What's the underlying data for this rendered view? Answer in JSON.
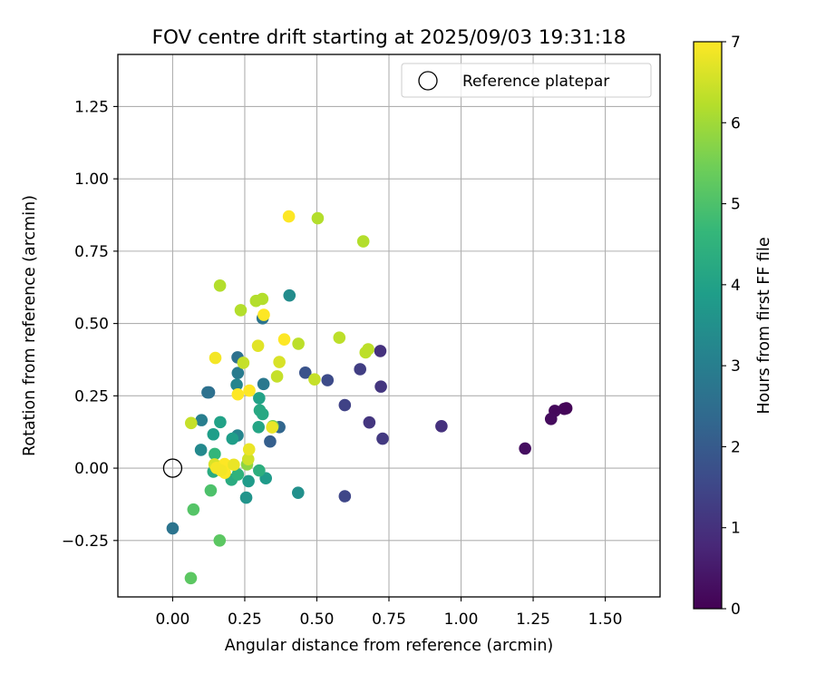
{
  "chart_data": {
    "type": "scatter",
    "title": "FOV centre drift starting at 2025/09/03 19:31:18",
    "xlabel": "Angular distance from reference (arcmin)",
    "ylabel": "Rotation from reference (arcmin)",
    "xlim": [
      -0.19,
      1.69
    ],
    "ylim": [
      -0.445,
      1.43
    ],
    "xticks": [
      0.0,
      0.25,
      0.5,
      0.75,
      1.0,
      1.25,
      1.5
    ],
    "xtick_labels": [
      "0.00",
      "0.25",
      "0.50",
      "0.75",
      "1.00",
      "1.25",
      "1.50"
    ],
    "yticks": [
      -0.25,
      0.0,
      0.25,
      0.5,
      0.75,
      1.0,
      1.25
    ],
    "ytick_labels": [
      "−0.25",
      "0.00",
      "0.25",
      "0.50",
      "0.75",
      "1.00",
      "1.25"
    ],
    "grid": true,
    "legend": {
      "position": "top-right",
      "label": "Reference platepar"
    },
    "reference_point": {
      "x": 0.0,
      "y": 0.0
    },
    "colorbar": {
      "label": "Hours from first FF file",
      "min": 0,
      "max": 7,
      "ticks": [
        0,
        1,
        2,
        3,
        4,
        5,
        6,
        7
      ],
      "tick_labels": [
        "0",
        "1",
        "2",
        "3",
        "4",
        "5",
        "6",
        "7"
      ],
      "colormap": "viridis",
      "stops": [
        "#440154",
        "#482878",
        "#3e4989",
        "#31688e",
        "#26828e",
        "#1f9e89",
        "#35b779",
        "#6ece58",
        "#b5de2b",
        "#fde725"
      ]
    },
    "points": [
      {
        "x": 1.365,
        "y": 0.207,
        "h": 0.05
      },
      {
        "x": 1.358,
        "y": 0.205,
        "h": 0.1
      },
      {
        "x": 1.325,
        "y": 0.198,
        "h": 0.15
      },
      {
        "x": 1.312,
        "y": 0.17,
        "h": 0.2
      },
      {
        "x": 1.222,
        "y": 0.068,
        "h": 0.25
      },
      {
        "x": 0.932,
        "y": 0.145,
        "h": 1.0
      },
      {
        "x": 0.72,
        "y": 0.405,
        "h": 1.0
      },
      {
        "x": 0.722,
        "y": 0.282,
        "h": 1.1
      },
      {
        "x": 0.728,
        "y": 0.102,
        "h": 1.2
      },
      {
        "x": 0.682,
        "y": 0.158,
        "h": 1.1
      },
      {
        "x": 0.65,
        "y": 0.342,
        "h": 1.3
      },
      {
        "x": 0.597,
        "y": 0.218,
        "h": 1.4
      },
      {
        "x": 0.597,
        "y": -0.097,
        "h": 1.5
      },
      {
        "x": 0.537,
        "y": 0.304,
        "h": 1.6
      },
      {
        "x": 0.46,
        "y": 0.33,
        "h": 1.8
      },
      {
        "x": 0.338,
        "y": 0.092,
        "h": 2.1
      },
      {
        "x": 0.37,
        "y": 0.142,
        "h": 2.3
      },
      {
        "x": 0.126,
        "y": 0.262,
        "h": 2.5
      },
      {
        "x": 0.121,
        "y": 0.262,
        "h": 2.6
      },
      {
        "x": 0.225,
        "y": 0.383,
        "h": 2.6
      },
      {
        "x": 0.312,
        "y": 0.518,
        "h": 2.7
      },
      {
        "x": 0.0,
        "y": -0.208,
        "h": 2.7
      },
      {
        "x": 0.315,
        "y": 0.291,
        "h": 2.8
      },
      {
        "x": 0.226,
        "y": 0.329,
        "h": 2.9
      },
      {
        "x": 0.1,
        "y": 0.166,
        "h": 3.0
      },
      {
        "x": 0.222,
        "y": 0.288,
        "h": 3.2
      },
      {
        "x": 0.225,
        "y": 0.113,
        "h": 3.2
      },
      {
        "x": 0.098,
        "y": 0.063,
        "h": 3.3
      },
      {
        "x": 0.405,
        "y": 0.597,
        "h": 3.4
      },
      {
        "x": 0.435,
        "y": -0.085,
        "h": 3.5
      },
      {
        "x": 0.255,
        "y": -0.102,
        "h": 3.6
      },
      {
        "x": 0.263,
        "y": -0.045,
        "h": 3.8
      },
      {
        "x": 0.323,
        "y": -0.035,
        "h": 3.8
      },
      {
        "x": 0.141,
        "y": 0.117,
        "h": 3.9
      },
      {
        "x": 0.207,
        "y": 0.102,
        "h": 3.9
      },
      {
        "x": 0.165,
        "y": 0.159,
        "h": 4.0
      },
      {
        "x": 0.3,
        "y": 0.242,
        "h": 4.0
      },
      {
        "x": 0.298,
        "y": 0.142,
        "h": 4.1
      },
      {
        "x": 0.302,
        "y": 0.2,
        "h": 4.2
      },
      {
        "x": 0.312,
        "y": 0.187,
        "h": 4.2
      },
      {
        "x": 0.141,
        "y": -0.012,
        "h": 4.3
      },
      {
        "x": 0.204,
        "y": -0.04,
        "h": 4.3
      },
      {
        "x": 0.3,
        "y": -0.008,
        "h": 4.4
      },
      {
        "x": 0.226,
        "y": -0.022,
        "h": 4.5
      },
      {
        "x": 0.146,
        "y": 0.049,
        "h": 4.6
      },
      {
        "x": 0.132,
        "y": -0.077,
        "h": 5.0
      },
      {
        "x": 0.072,
        "y": -0.143,
        "h": 5.1
      },
      {
        "x": 0.163,
        "y": -0.25,
        "h": 5.2
      },
      {
        "x": 0.063,
        "y": -0.38,
        "h": 5.2
      },
      {
        "x": 0.347,
        "y": 0.145,
        "h": 5.5
      },
      {
        "x": 0.258,
        "y": 0.013,
        "h": 5.8
      },
      {
        "x": 0.164,
        "y": 0.631,
        "h": 6.2
      },
      {
        "x": 0.236,
        "y": 0.546,
        "h": 6.2
      },
      {
        "x": 0.503,
        "y": 0.864,
        "h": 6.2
      },
      {
        "x": 0.661,
        "y": 0.784,
        "h": 6.2
      },
      {
        "x": 0.289,
        "y": 0.578,
        "h": 6.2
      },
      {
        "x": 0.311,
        "y": 0.585,
        "h": 6.2
      },
      {
        "x": 0.678,
        "y": 0.411,
        "h": 6.3
      },
      {
        "x": 0.669,
        "y": 0.4,
        "h": 6.3
      },
      {
        "x": 0.578,
        "y": 0.451,
        "h": 6.3
      },
      {
        "x": 0.436,
        "y": 0.43,
        "h": 6.3
      },
      {
        "x": 0.064,
        "y": 0.156,
        "h": 6.4
      },
      {
        "x": 0.245,
        "y": 0.364,
        "h": 6.4
      },
      {
        "x": 0.362,
        "y": 0.317,
        "h": 6.4
      },
      {
        "x": 0.492,
        "y": 0.307,
        "h": 6.4
      },
      {
        "x": 0.262,
        "y": 0.031,
        "h": 6.5
      },
      {
        "x": 0.145,
        "y": 0.013,
        "h": 6.6
      },
      {
        "x": 0.37,
        "y": 0.367,
        "h": 6.6
      },
      {
        "x": 0.296,
        "y": 0.423,
        "h": 6.7
      },
      {
        "x": 0.345,
        "y": 0.141,
        "h": 6.8
      },
      {
        "x": 0.265,
        "y": 0.065,
        "h": 6.8
      },
      {
        "x": 0.148,
        "y": 0.381,
        "h": 6.9
      },
      {
        "x": 0.403,
        "y": 0.87,
        "h": 7.0
      },
      {
        "x": 0.316,
        "y": 0.53,
        "h": 7.0
      },
      {
        "x": 0.387,
        "y": 0.445,
        "h": 7.0
      },
      {
        "x": 0.226,
        "y": 0.255,
        "h": 7.0
      },
      {
        "x": 0.266,
        "y": 0.268,
        "h": 7.0
      },
      {
        "x": 0.18,
        "y": 0.014,
        "h": 7.0
      },
      {
        "x": 0.181,
        "y": -0.016,
        "h": 7.0
      },
      {
        "x": 0.168,
        "y": -0.008,
        "h": 6.9
      },
      {
        "x": 0.212,
        "y": 0.012,
        "h": 6.8
      },
      {
        "x": 0.152,
        "y": 0.001,
        "h": 6.9
      }
    ]
  }
}
